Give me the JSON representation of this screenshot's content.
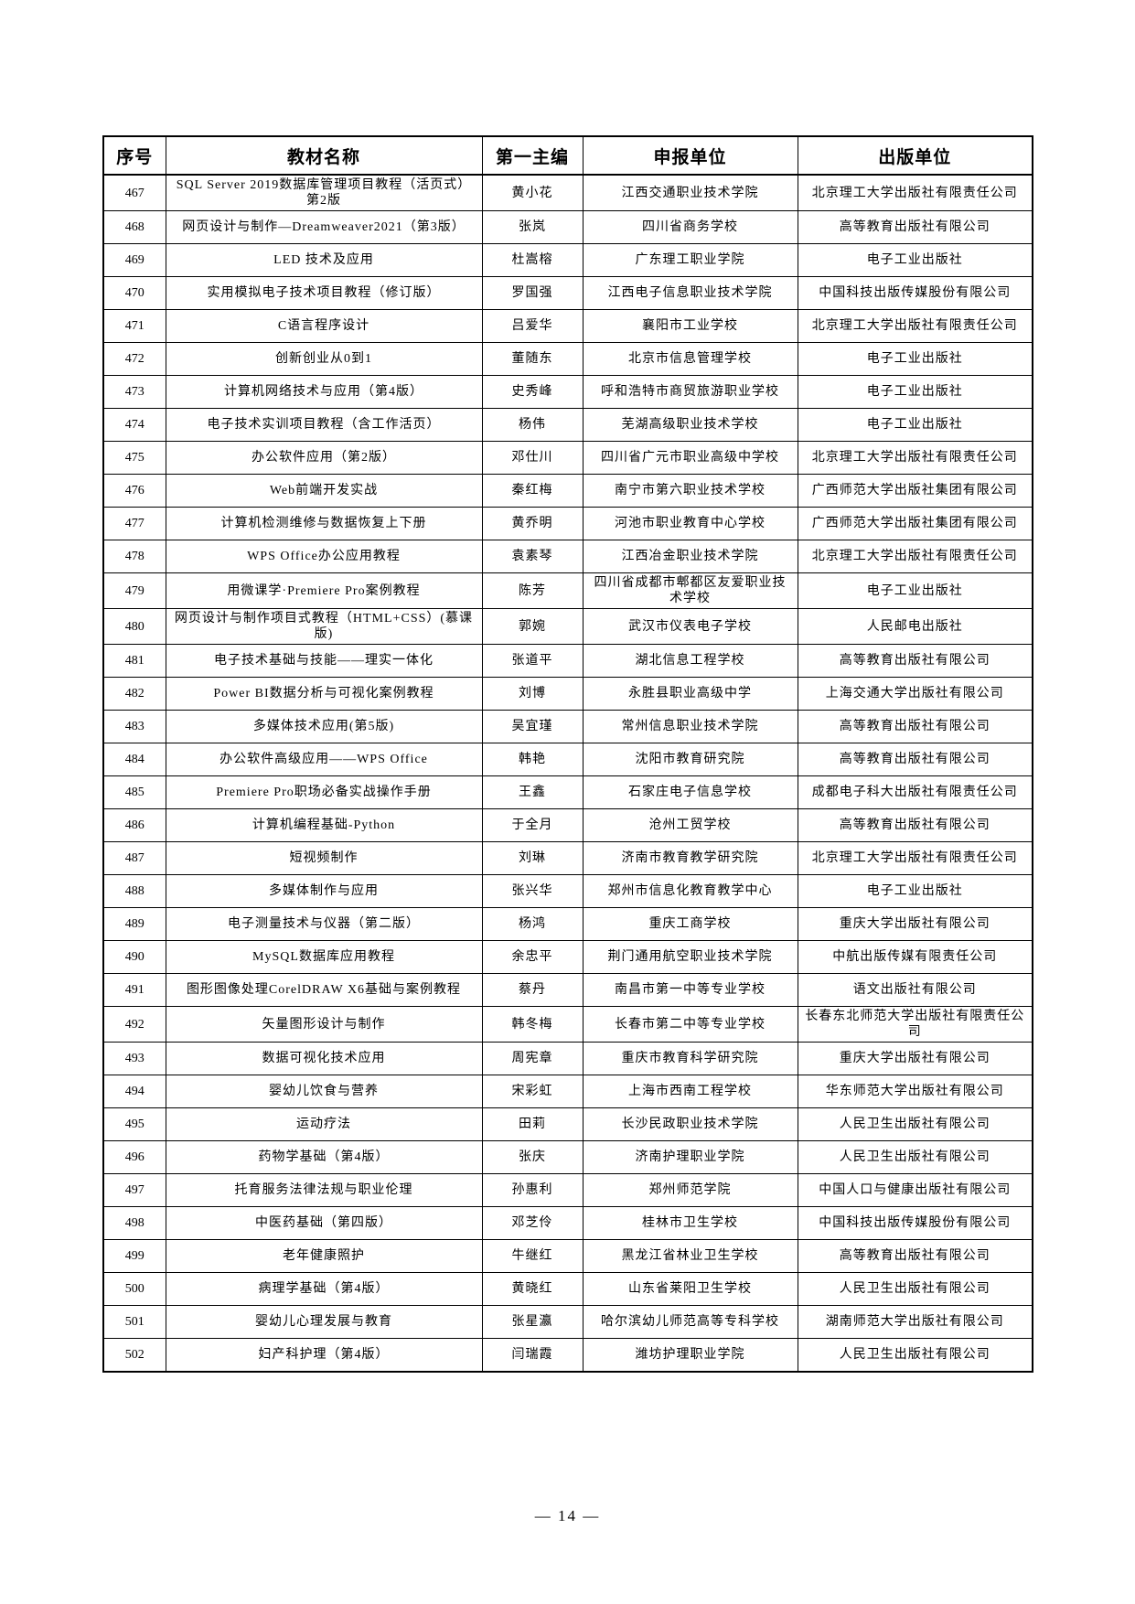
{
  "table": {
    "columns": [
      "序号",
      "教材名称",
      "第一主编",
      "申报单位",
      "出版单位"
    ],
    "rows": [
      {
        "no": "467",
        "title": "SQL Server 2019数据库管理项目教程（活页式）第2版",
        "editor": "黄小花",
        "applicant": "江西交通职业技术学院",
        "publisher": "北京理工大学出版社有限责任公司"
      },
      {
        "no": "468",
        "title": "网页设计与制作—Dreamweaver2021（第3版）",
        "editor": "张岚",
        "applicant": "四川省商务学校",
        "publisher": "高等教育出版社有限公司"
      },
      {
        "no": "469",
        "title": "LED 技术及应用",
        "editor": "杜嵩榕",
        "applicant": "广东理工职业学院",
        "publisher": "电子工业出版社"
      },
      {
        "no": "470",
        "title": "实用模拟电子技术项目教程（修订版）",
        "editor": "罗国强",
        "applicant": "江西电子信息职业技术学院",
        "publisher": "中国科技出版传媒股份有限公司"
      },
      {
        "no": "471",
        "title": "C语言程序设计",
        "editor": "吕爱华",
        "applicant": "襄阳市工业学校",
        "publisher": "北京理工大学出版社有限责任公司"
      },
      {
        "no": "472",
        "title": "创新创业从0到1",
        "editor": "董随东",
        "applicant": "北京市信息管理学校",
        "publisher": "电子工业出版社"
      },
      {
        "no": "473",
        "title": "计算机网络技术与应用（第4版）",
        "editor": "史秀峰",
        "applicant": "呼和浩特市商贸旅游职业学校",
        "publisher": "电子工业出版社"
      },
      {
        "no": "474",
        "title": "电子技术实训项目教程（含工作活页）",
        "editor": "杨伟",
        "applicant": "芜湖高级职业技术学校",
        "publisher": "电子工业出版社"
      },
      {
        "no": "475",
        "title": "办公软件应用（第2版）",
        "editor": "邓仕川",
        "applicant": "四川省广元市职业高级中学校",
        "publisher": "北京理工大学出版社有限责任公司"
      },
      {
        "no": "476",
        "title": "Web前端开发实战",
        "editor": "秦红梅",
        "applicant": "南宁市第六职业技术学校",
        "publisher": "广西师范大学出版社集团有限公司"
      },
      {
        "no": "477",
        "title": "计算机检测维修与数据恢复上下册",
        "editor": "黄乔明",
        "applicant": "河池市职业教育中心学校",
        "publisher": "广西师范大学出版社集团有限公司"
      },
      {
        "no": "478",
        "title": "WPS Office办公应用教程",
        "editor": "袁素琴",
        "applicant": "江西冶金职业技术学院",
        "publisher": "北京理工大学出版社有限责任公司"
      },
      {
        "no": "479",
        "title": "用微课学·Premiere Pro案例教程",
        "editor": "陈芳",
        "applicant": "四川省成都市郫都区友爱职业技术学校",
        "publisher": "电子工业出版社"
      },
      {
        "no": "480",
        "title": "网页设计与制作项目式教程（HTML+CSS）(慕课版)",
        "editor": "郭婉",
        "applicant": "武汉市仪表电子学校",
        "publisher": "人民邮电出版社"
      },
      {
        "no": "481",
        "title": "电子技术基础与技能——理实一体化",
        "editor": "张道平",
        "applicant": "湖北信息工程学校",
        "publisher": "高等教育出版社有限公司"
      },
      {
        "no": "482",
        "title": "Power BI数据分析与可视化案例教程",
        "editor": "刘博",
        "applicant": "永胜县职业高级中学",
        "publisher": "上海交通大学出版社有限公司"
      },
      {
        "no": "483",
        "title": "多媒体技术应用(第5版)",
        "editor": "吴宜瑾",
        "applicant": "常州信息职业技术学院",
        "publisher": "高等教育出版社有限公司"
      },
      {
        "no": "484",
        "title": "办公软件高级应用——WPS Office",
        "editor": "韩艳",
        "applicant": "沈阳市教育研究院",
        "publisher": "高等教育出版社有限公司"
      },
      {
        "no": "485",
        "title": "Premiere Pro职场必备实战操作手册",
        "editor": "王鑫",
        "applicant": "石家庄电子信息学校",
        "publisher": "成都电子科大出版社有限责任公司"
      },
      {
        "no": "486",
        "title": "计算机编程基础-Python",
        "editor": "于全月",
        "applicant": "沧州工贸学校",
        "publisher": "高等教育出版社有限公司"
      },
      {
        "no": "487",
        "title": "短视频制作",
        "editor": "刘琳",
        "applicant": "济南市教育教学研究院",
        "publisher": "北京理工大学出版社有限责任公司"
      },
      {
        "no": "488",
        "title": "多媒体制作与应用",
        "editor": "张兴华",
        "applicant": "郑州市信息化教育教学中心",
        "publisher": "电子工业出版社"
      },
      {
        "no": "489",
        "title": "电子测量技术与仪器（第二版）",
        "editor": "杨鸿",
        "applicant": "重庆工商学校",
        "publisher": "重庆大学出版社有限公司"
      },
      {
        "no": "490",
        "title": "MySQL数据库应用教程",
        "editor": "余忠平",
        "applicant": "荆门通用航空职业技术学院",
        "publisher": "中航出版传媒有限责任公司"
      },
      {
        "no": "491",
        "title": "图形图像处理CorelDRAW X6基础与案例教程",
        "editor": "蔡丹",
        "applicant": "南昌市第一中等专业学校",
        "publisher": "语文出版社有限公司"
      },
      {
        "no": "492",
        "title": "矢量图形设计与制作",
        "editor": "韩冬梅",
        "applicant": "长春市第二中等专业学校",
        "publisher": "长春东北师范大学出版社有限责任公司"
      },
      {
        "no": "493",
        "title": "数据可视化技术应用",
        "editor": "周宪章",
        "applicant": "重庆市教育科学研究院",
        "publisher": "重庆大学出版社有限公司"
      },
      {
        "no": "494",
        "title": "婴幼儿饮食与营养",
        "editor": "宋彩虹",
        "applicant": "上海市西南工程学校",
        "publisher": "华东师范大学出版社有限公司"
      },
      {
        "no": "495",
        "title": "运动疗法",
        "editor": "田莉",
        "applicant": "长沙民政职业技术学院",
        "publisher": "人民卫生出版社有限公司"
      },
      {
        "no": "496",
        "title": "药物学基础（第4版）",
        "editor": "张庆",
        "applicant": "济南护理职业学院",
        "publisher": "人民卫生出版社有限公司"
      },
      {
        "no": "497",
        "title": "托育服务法律法规与职业伦理",
        "editor": "孙惠利",
        "applicant": "郑州师范学院",
        "publisher": "中国人口与健康出版社有限公司"
      },
      {
        "no": "498",
        "title": "中医药基础（第四版）",
        "editor": "邓芝伶",
        "applicant": "桂林市卫生学校",
        "publisher": "中国科技出版传媒股份有限公司"
      },
      {
        "no": "499",
        "title": "老年健康照护",
        "editor": "牛继红",
        "applicant": "黑龙江省林业卫生学校",
        "publisher": "高等教育出版社有限公司"
      },
      {
        "no": "500",
        "title": "病理学基础（第4版）",
        "editor": "黄晓红",
        "applicant": "山东省莱阳卫生学校",
        "publisher": "人民卫生出版社有限公司"
      },
      {
        "no": "501",
        "title": "婴幼儿心理发展与教育",
        "editor": "张星瀛",
        "applicant": "哈尔滨幼儿师范高等专科学校",
        "publisher": "湖南师范大学出版社有限公司"
      },
      {
        "no": "502",
        "title": "妇产科护理（第4版）",
        "editor": "闫瑞霞",
        "applicant": "潍坊护理职业学院",
        "publisher": "人民卫生出版社有限公司"
      }
    ]
  },
  "footer": {
    "page_label": "— 14 —"
  }
}
